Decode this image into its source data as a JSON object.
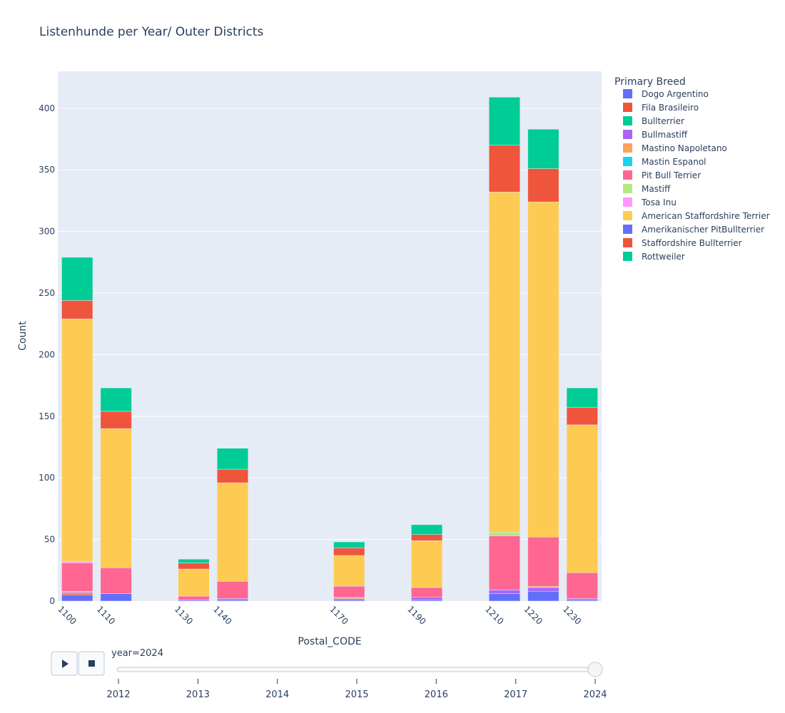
{
  "chart_data": {
    "type": "bar",
    "barmode": "stack",
    "title": "Listenhunde per Year/ Outer Districts",
    "xlabel": "Postal_CODE",
    "ylabel": "Count",
    "ylim": [
      0,
      430
    ],
    "yticks": [
      0,
      50,
      100,
      150,
      200,
      250,
      300,
      350,
      400
    ],
    "xlim": [
      1095,
      1235
    ],
    "categories": [
      1100,
      1110,
      1130,
      1140,
      1170,
      1190,
      1210,
      1220,
      1230
    ],
    "xtick_labels": [
      "1100",
      "1110",
      "1130",
      "1140",
      "1170",
      "1190",
      "1210",
      "1220",
      "1230"
    ],
    "grid": true,
    "legend_position": "right",
    "legend_title": "Primary Breed",
    "series": [
      {
        "name": "Dogo Argentino",
        "color": "#636efa",
        "values": [
          5,
          6,
          0,
          1,
          1,
          1,
          6,
          8,
          1
        ]
      },
      {
        "name": "Fila Brasileiro",
        "color": "#EF553B",
        "values": [
          1,
          0,
          0,
          0,
          0,
          0,
          0,
          0,
          0
        ]
      },
      {
        "name": "Bullterrier",
        "color": "#00cc96",
        "values": [
          0,
          0,
          0,
          0,
          0,
          0,
          0,
          0,
          0
        ]
      },
      {
        "name": "Bullmastiff",
        "color": "#ab63fa",
        "values": [
          1,
          0,
          1,
          1,
          1,
          2,
          3,
          3,
          1
        ]
      },
      {
        "name": "Mastino Napoletano",
        "color": "#FFA15A",
        "values": [
          1,
          0,
          0,
          0,
          1,
          0,
          0,
          1,
          0
        ]
      },
      {
        "name": "Mastin Espanol",
        "color": "#19d3f3",
        "values": [
          0,
          0,
          0,
          0,
          0,
          0,
          0,
          0,
          0
        ]
      },
      {
        "name": "Pit Bull Terrier",
        "color": "#FF6692",
        "values": [
          23,
          21,
          3,
          14,
          9,
          8,
          44,
          40,
          21
        ]
      },
      {
        "name": "Mastiff",
        "color": "#B6E880",
        "values": [
          0,
          0,
          0,
          0,
          0,
          0,
          3,
          0,
          0
        ]
      },
      {
        "name": "Tosa Inu",
        "color": "#FF97FF",
        "values": [
          1,
          0,
          0,
          0,
          0,
          0,
          0,
          0,
          0
        ]
      },
      {
        "name": "American Staffordshire Terrier",
        "color": "#FECB52",
        "values": [
          197,
          113,
          22,
          80,
          25,
          38,
          276,
          272,
          120
        ]
      },
      {
        "name": "Amerikanischer PitBullterrier",
        "color": "#636efa",
        "values": [
          0,
          0,
          0,
          0,
          0,
          0,
          0,
          0,
          0
        ]
      },
      {
        "name": "Staffordshire Bullterrier",
        "color": "#EF553B",
        "values": [
          15,
          14,
          5,
          11,
          6,
          5,
          38,
          27,
          14
        ]
      },
      {
        "name": "Rottweiler",
        "color": "#00cc96",
        "values": [
          35,
          19,
          3,
          17,
          5,
          8,
          39,
          32,
          16
        ]
      }
    ]
  },
  "slider": {
    "current_label": "year=2024",
    "steps": [
      "2012",
      "2013",
      "2014",
      "2015",
      "2016",
      "2017",
      "2024"
    ],
    "active_index": 6
  },
  "controls": {
    "play_icon": "play-icon",
    "stop_icon": "stop-icon"
  },
  "colors": {
    "plot_bg": "#e5ecf6",
    "grid": "#ffffff",
    "text": "#2a3f5f"
  }
}
